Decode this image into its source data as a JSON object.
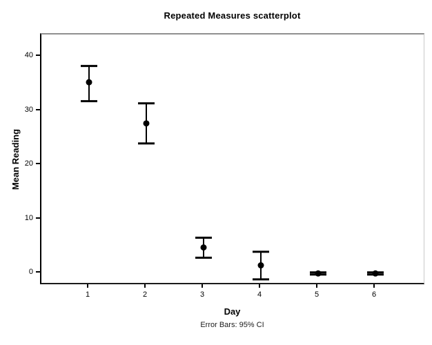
{
  "chart": {
    "title": "Repeated Measures scatterplot",
    "footnote": "Error Bars: 95% CI",
    "colors": {
      "marker": "#000000",
      "error_bar": "#000000",
      "frame_dark": "#000000",
      "frame_light": "#8f8f8f",
      "background": "#ffffff"
    }
  },
  "chart_data": {
    "type": "scatter",
    "title": "Repeated Measures scatterplot",
    "subtitle": "",
    "xlabel": "Day",
    "ylabel": "Mean Reading",
    "annotation": "Error Bars: 95% CI",
    "x_ticks": [
      1,
      2,
      3,
      4,
      5,
      6
    ],
    "y_ticks": [
      0,
      10,
      20,
      30,
      40
    ],
    "xlim": [
      0.17,
      6.9
    ],
    "ylim": [
      -2.3,
      44.1
    ],
    "grid": "off",
    "legend": "none",
    "error_bar_type": "95% CI",
    "points": [
      {
        "x": 1,
        "mean": 35.3,
        "ci_low": 31.8,
        "ci_high": 38.3
      },
      {
        "x": 2,
        "mean": 27.7,
        "ci_low": 24.0,
        "ci_high": 31.4
      },
      {
        "x": 3,
        "mean": 4.8,
        "ci_low": 2.9,
        "ci_high": 6.6
      },
      {
        "x": 4,
        "mean": 1.5,
        "ci_low": -1.1,
        "ci_high": 4.0
      },
      {
        "x": 5,
        "mean": 0.0,
        "ci_low": -0.2,
        "ci_high": 0.2
      },
      {
        "x": 6,
        "mean": 0.0,
        "ci_low": -0.2,
        "ci_high": 0.2
      }
    ]
  }
}
